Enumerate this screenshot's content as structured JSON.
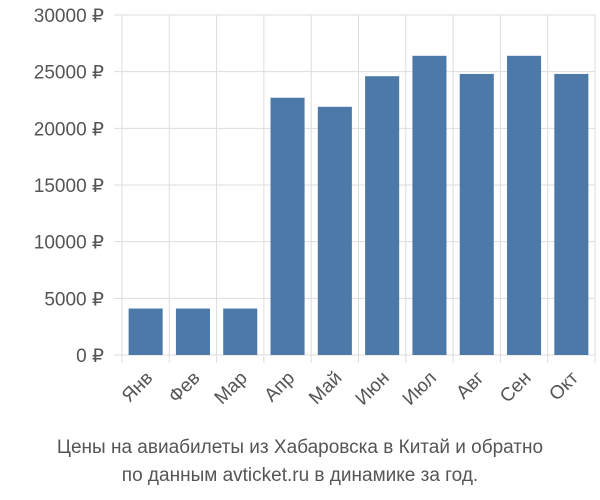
{
  "chart_data": {
    "type": "bar",
    "title": "",
    "xlabel": "",
    "ylabel": "",
    "categories": [
      "Янв",
      "Фев",
      "Мар",
      "Апр",
      "Май",
      "Июн",
      "Июл",
      "Авг",
      "Сен",
      "Окт"
    ],
    "values": [
      4100,
      4100,
      4100,
      22700,
      21900,
      24600,
      26400,
      24800,
      26400,
      24800
    ],
    "ylim": [
      0,
      30000
    ],
    "yticks": [
      0,
      5000,
      10000,
      15000,
      20000,
      25000,
      30000
    ],
    "ytick_labels": [
      "0 ₽",
      "5000 ₽",
      "10000 ₽",
      "15000 ₽",
      "20000 ₽",
      "25000 ₽",
      "30000 ₽"
    ],
    "grid": true,
    "bar_color": "#4d79a9"
  },
  "caption": {
    "line1": "Цены на авиабилеты из Хабаровска в Китай и обратно",
    "line2": "по данным avticket.ru в динамике за год."
  }
}
